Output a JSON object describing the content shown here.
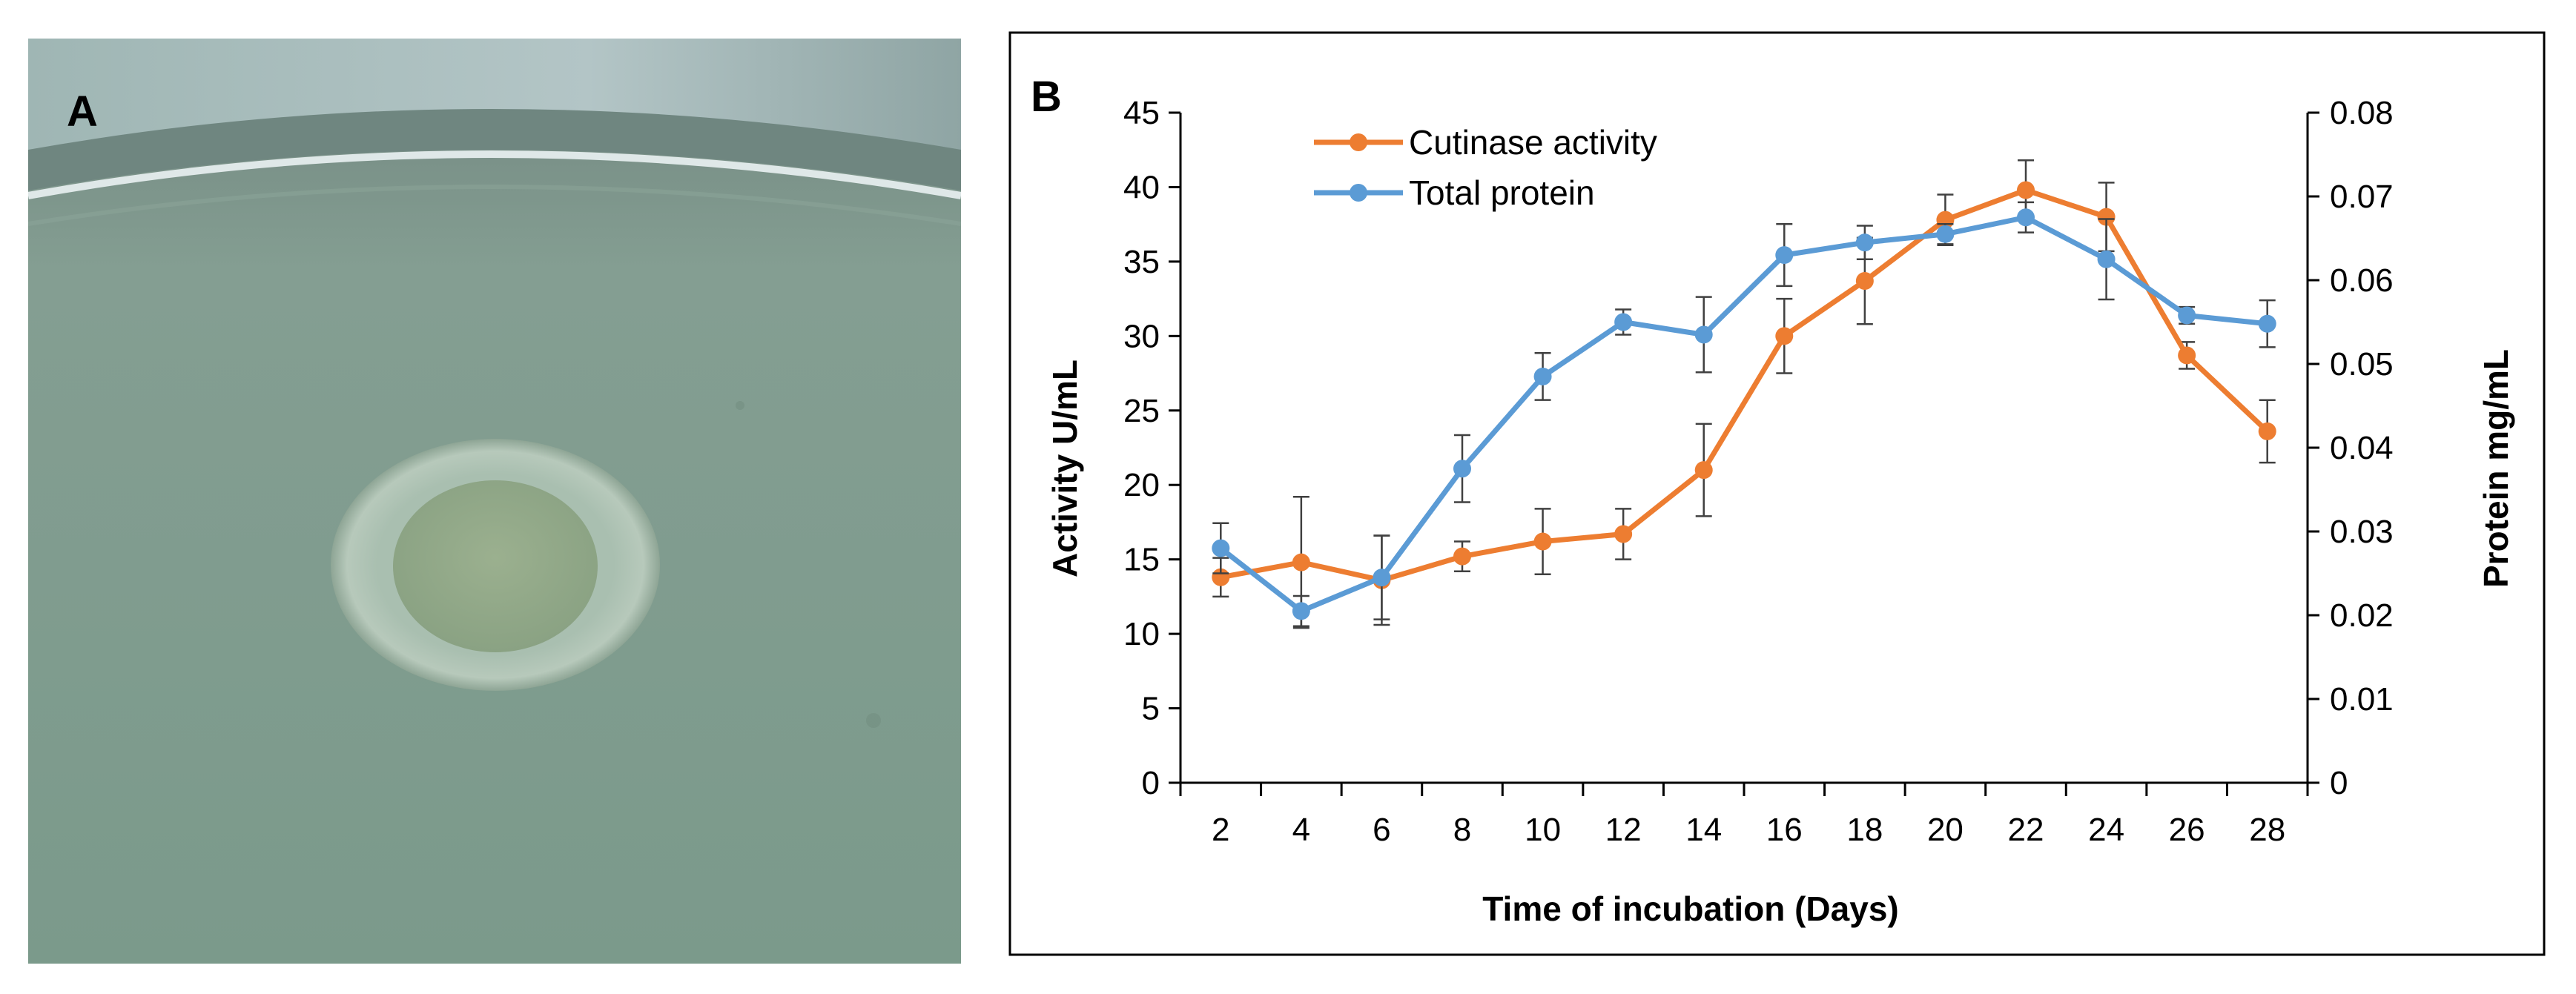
{
  "panels": {
    "a_label": "A",
    "b_label": "B"
  },
  "photo": {
    "background_color": "#7d9a8c",
    "rim_color": "#c9d4d2"
  },
  "chart_data": {
    "type": "line",
    "x": [
      2,
      4,
      6,
      8,
      10,
      12,
      14,
      16,
      18,
      20,
      22,
      24,
      26,
      28
    ],
    "xlabel": "Time of incubation (Days)",
    "ylabel": "Activity U/mL",
    "y2label": "Protein mg/mL",
    "ylim": [
      0,
      45
    ],
    "y2lim": [
      0,
      0.08
    ],
    "xticks": [
      2,
      4,
      6,
      8,
      10,
      12,
      14,
      16,
      18,
      20,
      22,
      24,
      26,
      28
    ],
    "yticks": [
      0,
      5,
      10,
      15,
      20,
      25,
      30,
      35,
      40,
      45
    ],
    "y2ticks": [
      "0",
      "0.01",
      "0.02",
      "0.03",
      "0.04",
      "0.05",
      "0.06",
      "0.07",
      "0.08"
    ],
    "grid": false,
    "legend_position": "top-left",
    "series": [
      {
        "name": "Cutinase activity",
        "axis": "left",
        "color": "#ed7d31",
        "values": [
          13.8,
          14.8,
          13.6,
          15.2,
          16.2,
          16.7,
          21.0,
          30.0,
          33.7,
          37.8,
          39.8,
          38.0,
          28.7,
          23.6
        ],
        "errors": [
          1.3,
          4.4,
          3.0,
          1.0,
          2.2,
          1.7,
          3.1,
          2.5,
          2.9,
          1.7,
          2.0,
          2.3,
          0.9,
          2.1
        ]
      },
      {
        "name": "Total protein",
        "axis": "right",
        "color": "#5b9bd5",
        "values": [
          0.028,
          0.0205,
          0.0245,
          0.0375,
          0.0485,
          0.055,
          0.0535,
          0.063,
          0.0645,
          0.0655,
          0.0675,
          0.0625,
          0.0558,
          0.0548
        ],
        "errors": [
          0.003,
          0.0018,
          0.005,
          0.004,
          0.0028,
          0.0015,
          0.0045,
          0.0037,
          0.002,
          0.0012,
          0.0018,
          0.0048,
          0.001,
          0.0028
        ]
      }
    ]
  }
}
